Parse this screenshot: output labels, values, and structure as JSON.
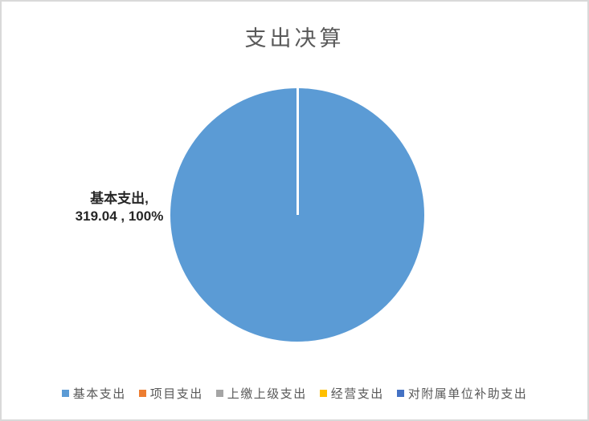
{
  "chart_data": {
    "type": "pie",
    "title": "支出决算",
    "categories": [
      "基本支出",
      "项目支出",
      "上缴上级支出",
      "经营支出",
      "对附属单位补助支出"
    ],
    "values": [
      319.04,
      0,
      0,
      0,
      0
    ],
    "slices": [
      {
        "label": "基本支出",
        "value": 319.04,
        "percent": "100%",
        "color": "#5B9BD5"
      }
    ],
    "data_label": {
      "line1": "基本支出,",
      "line2": "319.04 , 100%"
    },
    "legend_position": "bottom",
    "legend": [
      {
        "label": "基本支出",
        "color": "#5B9BD5"
      },
      {
        "label": "项目支出",
        "color": "#ED7D31"
      },
      {
        "label": "上缴上级支出",
        "color": "#A5A5A5"
      },
      {
        "label": "经营支出",
        "color": "#FFC000"
      },
      {
        "label": "对附属单位补助支出",
        "color": "#4472C4"
      }
    ],
    "colors": {
      "title_text": "#595959",
      "legend_text": "#595959",
      "data_label_text": "#262626",
      "slice_divider": "#FFFFFF",
      "chart_border": "#D9D9D9",
      "background": "#FFFFFF"
    }
  }
}
